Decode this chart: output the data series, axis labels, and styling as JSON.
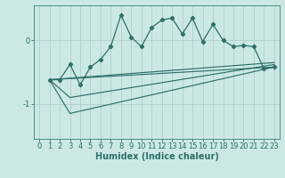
{
  "bg_color": "#cce8e5",
  "line_color": "#2d7068",
  "grid_color": "#b0d0cc",
  "xlabel": "Humidex (Indice chaleur)",
  "xlabel_fontsize": 7,
  "tick_fontsize": 6,
  "yticks": [
    0,
    -1
  ],
  "xlim": [
    -0.5,
    23.5
  ],
  "ylim": [
    -1.55,
    0.55
  ],
  "main_x": [
    1,
    2,
    3,
    4,
    5,
    6,
    7,
    8,
    9,
    10,
    11,
    12,
    13,
    14,
    15,
    16,
    17,
    18,
    19,
    20,
    21,
    22,
    23
  ],
  "main_y": [
    -0.62,
    -0.62,
    -0.38,
    -0.7,
    -0.42,
    -0.3,
    -0.1,
    0.4,
    0.05,
    -0.1,
    0.2,
    0.32,
    0.35,
    0.1,
    0.35,
    -0.02,
    0.25,
    0.0,
    -0.1,
    -0.08,
    -0.1,
    -0.45,
    -0.42
  ],
  "line1_x": [
    1,
    23
  ],
  "line1_y": [
    -0.62,
    -0.42
  ],
  "line2_x": [
    1,
    23
  ],
  "line2_y": [
    -0.62,
    -0.35
  ],
  "line3_x": [
    1,
    3,
    23
  ],
  "line3_y": [
    -0.62,
    -0.9,
    -0.38
  ],
  "line4_x": [
    1,
    3,
    23
  ],
  "line4_y": [
    -0.62,
    -1.15,
    -0.42
  ]
}
